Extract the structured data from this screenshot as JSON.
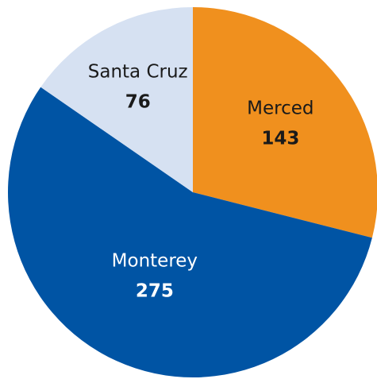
{
  "chart_data": {
    "type": "pie",
    "categories": [
      "Merced",
      "Monterey",
      "Santa Cruz"
    ],
    "values": [
      143,
      275,
      76
    ],
    "colors": [
      "#f0901e",
      "#0054a4",
      "#d6e1f2"
    ],
    "start_angle": 0,
    "direction": "clockwise"
  }
}
